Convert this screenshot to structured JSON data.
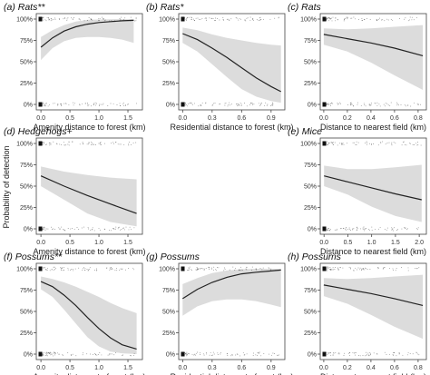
{
  "chart_data": [
    {
      "type": "line",
      "title": "(a) Rats**",
      "xlabel": "Amenity distance to forest (km)",
      "xlim": [
        -0.08,
        1.75
      ],
      "xticks": [
        0.0,
        0.5,
        1.0,
        1.5
      ],
      "ylim": [
        0,
        1
      ],
      "yticks": [
        "0%",
        "25%",
        "50%",
        "75%",
        "100%"
      ],
      "x": [
        0.0,
        0.2,
        0.4,
        0.6,
        0.8,
        1.0,
        1.2,
        1.4,
        1.6
      ],
      "fit": [
        0.67,
        0.78,
        0.86,
        0.91,
        0.94,
        0.96,
        0.97,
        0.98,
        0.985
      ],
      "ci_low": [
        0.52,
        0.66,
        0.74,
        0.78,
        0.79,
        0.79,
        0.78,
        0.76,
        0.72
      ],
      "ci_high": [
        0.79,
        0.87,
        0.93,
        0.97,
        0.99,
        0.995,
        0.998,
        0.999,
        1.0
      ]
    },
    {
      "type": "line",
      "title": "(b) Rats*",
      "xlabel": "Residential distance to forest (km)",
      "xlim": [
        -0.04,
        1.04
      ],
      "xticks": [
        0.0,
        0.3,
        0.6,
        0.9
      ],
      "ylim": [
        0,
        1
      ],
      "yticks": [
        "0%",
        "25%",
        "50%",
        "75%",
        "100%"
      ],
      "x": [
        0.0,
        0.15,
        0.3,
        0.45,
        0.6,
        0.75,
        0.9,
        1.0
      ],
      "fit": [
        0.83,
        0.76,
        0.66,
        0.55,
        0.43,
        0.31,
        0.21,
        0.15
      ],
      "ci_low": [
        0.72,
        0.62,
        0.47,
        0.32,
        0.18,
        0.09,
        0.04,
        0.02
      ],
      "ci_high": [
        0.9,
        0.87,
        0.82,
        0.78,
        0.75,
        0.72,
        0.7,
        0.69
      ]
    },
    {
      "type": "line",
      "title": "(c) Rats",
      "xlabel": "Distance to nearest field (km)",
      "xlim": [
        -0.03,
        0.87
      ],
      "xticks": [
        0.0,
        0.2,
        0.4,
        0.6,
        0.8
      ],
      "ylim": [
        0,
        1
      ],
      "yticks": [
        "0%",
        "25%",
        "50%",
        "75%",
        "100%"
      ],
      "x": [
        0.0,
        0.2,
        0.4,
        0.6,
        0.84
      ],
      "fit": [
        0.82,
        0.77,
        0.72,
        0.66,
        0.57
      ],
      "ci_low": [
        0.7,
        0.62,
        0.49,
        0.34,
        0.17
      ],
      "ci_high": [
        0.89,
        0.88,
        0.89,
        0.91,
        0.93
      ]
    },
    {
      "type": "line",
      "title": "(d) Hedgehogs+",
      "xlabel": "Amenity distance to forest (km)",
      "xlim": [
        -0.08,
        1.75
      ],
      "xticks": [
        0.0,
        0.5,
        1.0,
        1.5
      ],
      "ylim": [
        0,
        1
      ],
      "yticks": [
        "0%",
        "25%",
        "50%",
        "75%",
        "100%"
      ],
      "x": [
        0.0,
        0.4,
        0.8,
        1.2,
        1.65
      ],
      "fit": [
        0.62,
        0.5,
        0.39,
        0.29,
        0.18
      ],
      "ci_low": [
        0.5,
        0.34,
        0.18,
        0.08,
        0.03
      ],
      "ci_high": [
        0.73,
        0.67,
        0.63,
        0.6,
        0.58
      ]
    },
    {
      "type": "line",
      "title": "(e) Mice",
      "xlabel": "Distance to nearest field (km)",
      "xlim": [
        -0.08,
        2.15
      ],
      "xticks": [
        0.0,
        0.5,
        1.0,
        1.5,
        2.0
      ],
      "ylim": [
        0,
        1
      ],
      "yticks": [
        "0%",
        "25%",
        "50%",
        "75%",
        "100%"
      ],
      "x": [
        0.0,
        0.5,
        1.0,
        1.5,
        2.05
      ],
      "fit": [
        0.62,
        0.55,
        0.48,
        0.41,
        0.34
      ],
      "ci_low": [
        0.5,
        0.4,
        0.26,
        0.15,
        0.08
      ],
      "ci_high": [
        0.74,
        0.7,
        0.7,
        0.72,
        0.75
      ]
    },
    {
      "type": "line",
      "title": "(f) Possums**",
      "xlabel": "Amenity distance to forest (km)",
      "xlim": [
        -0.08,
        1.75
      ],
      "xticks": [
        0.0,
        0.5,
        1.0,
        1.5
      ],
      "ylim": [
        0,
        1
      ],
      "yticks": [
        "0%",
        "25%",
        "50%",
        "75%",
        "100%"
      ],
      "x": [
        0.0,
        0.2,
        0.4,
        0.6,
        0.8,
        1.0,
        1.2,
        1.4,
        1.65
      ],
      "fit": [
        0.85,
        0.79,
        0.69,
        0.57,
        0.43,
        0.3,
        0.19,
        0.11,
        0.06
      ],
      "ci_low": [
        0.76,
        0.67,
        0.52,
        0.36,
        0.2,
        0.09,
        0.03,
        0.01,
        0.0
      ],
      "ci_high": [
        0.91,
        0.88,
        0.84,
        0.79,
        0.73,
        0.67,
        0.6,
        0.54,
        0.48
      ]
    },
    {
      "type": "line",
      "title": "(g) Possums",
      "xlabel": "Residential distance to forest (km)",
      "xlim": [
        -0.04,
        1.04
      ],
      "xticks": [
        0.0,
        0.3,
        0.6,
        0.9
      ],
      "ylim": [
        0,
        1
      ],
      "yticks": [
        "0%",
        "25%",
        "50%",
        "75%",
        "100%"
      ],
      "x": [
        0.0,
        0.15,
        0.3,
        0.45,
        0.6,
        0.75,
        0.9,
        1.0
      ],
      "fit": [
        0.65,
        0.76,
        0.84,
        0.9,
        0.94,
        0.96,
        0.975,
        0.985
      ],
      "ci_low": [
        0.45,
        0.56,
        0.62,
        0.64,
        0.64,
        0.62,
        0.58,
        0.55
      ],
      "ci_high": [
        0.82,
        0.89,
        0.95,
        0.98,
        0.995,
        1.0,
        1.0,
        1.0
      ]
    },
    {
      "type": "line",
      "title": "(h) Possums",
      "xlabel": "Distance to nearest field (km)",
      "xlim": [
        -0.03,
        0.87
      ],
      "xticks": [
        0.0,
        0.2,
        0.4,
        0.6,
        0.8
      ],
      "ylim": [
        0,
        1
      ],
      "yticks": [
        "0%",
        "25%",
        "50%",
        "75%",
        "100%"
      ],
      "x": [
        0.0,
        0.2,
        0.4,
        0.6,
        0.84
      ],
      "fit": [
        0.81,
        0.76,
        0.71,
        0.65,
        0.57
      ],
      "ci_low": [
        0.68,
        0.59,
        0.46,
        0.32,
        0.18
      ],
      "ci_high": [
        0.89,
        0.88,
        0.89,
        0.91,
        0.93
      ]
    }
  ],
  "shared": {
    "ylabel": "Probability of detection"
  },
  "colors": {
    "ci_band": "#dcdcdc",
    "line": "#222222",
    "points": "#333333"
  }
}
